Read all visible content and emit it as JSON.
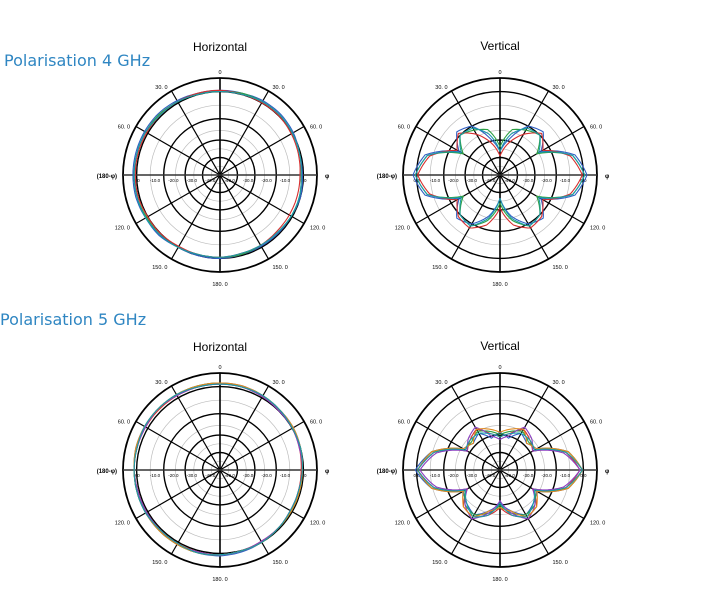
{
  "sections": [
    {
      "title": "Polarisation 4 GHz"
    },
    {
      "title": "Polarisation 5 GHz"
    }
  ],
  "angle_labels": {
    "top": "0",
    "r30": "30. 0",
    "r60": "60. 0",
    "r120": "120. 0",
    "r150": "150. 0",
    "bottom": "180. 0",
    "l150": "150. 0",
    "l120": "120. 0",
    "l60": "60. 0",
    "l30": "30. 0",
    "right": "φ",
    "left": "(180-φ)"
  },
  "radial_labels": [
    "0.0",
    "-10.0",
    "-20.0",
    "-30.0",
    "-40.0"
  ],
  "colors": {
    "blue": "#2f5fc4",
    "green": "#2ea043",
    "red": "#d62f2f",
    "teal": "#1a9aa8",
    "purple": "#8a3fc0",
    "orange": "#e08a20",
    "accent": "#2f86c2"
  },
  "chart_data": [
    {
      "type": "polar-line",
      "section": "Polarisation 4 GHz",
      "title": "Horizontal",
      "r_unit": "dB",
      "r_range": [
        -40,
        0
      ],
      "series": [
        {
          "color": "blue",
          "gain_db": [
            -4,
            -4,
            -3.5,
            -3.5,
            -4,
            -5,
            -5,
            -4.5,
            -5,
            -5,
            -5,
            -5,
            -4.5,
            -4.5,
            -4.5,
            -3.5,
            -3.5,
            -3,
            -3,
            -3,
            -3,
            -3,
            -3.5,
            -4
          ]
        },
        {
          "color": "green",
          "gain_db": [
            -4.5,
            -4,
            -4,
            -4,
            -4.5,
            -5,
            -5.5,
            -5,
            -5,
            -5.5,
            -5.5,
            -5,
            -5,
            -5,
            -4.5,
            -4,
            -4,
            -3.5,
            -3.5,
            -3.5,
            -3.5,
            -3.5,
            -4,
            -4.5
          ]
        },
        {
          "color": "red",
          "gain_db": [
            -4,
            -4.5,
            -4.5,
            -4.5,
            -5,
            -5.5,
            -6,
            -6,
            -6,
            -6,
            -5.5,
            -5.5,
            -5,
            -5,
            -5,
            -4.5,
            -4.5,
            -4,
            -4,
            -4,
            -4,
            -4,
            -4,
            -4
          ]
        },
        {
          "color": "teal",
          "gain_db": [
            -4.5,
            -4.5,
            -4,
            -4,
            -4.5,
            -5,
            -5.5,
            -5,
            -5,
            -5.5,
            -5.5,
            -5.5,
            -5,
            -5,
            -4.5,
            -4,
            -3.5,
            -3.5,
            -3.5,
            -3.5,
            -3.5,
            -4,
            -4,
            -4.5
          ]
        }
      ]
    },
    {
      "type": "polar-line",
      "section": "Polarisation 4 GHz",
      "title": "Vertical",
      "r_unit": "dB",
      "r_range": [
        -40,
        0
      ],
      "series": [
        {
          "color": "blue",
          "gain_db": [
            -30,
            -24,
            -16,
            -14,
            -20,
            -7,
            -3,
            -7,
            -20,
            -14,
            -16,
            -22,
            -30,
            -22,
            -16,
            -14,
            -20,
            -7,
            -3,
            -7,
            -20,
            -14,
            -16,
            -24
          ]
        },
        {
          "color": "green",
          "gain_db": [
            -28,
            -20,
            -18,
            -16,
            -22,
            -8,
            -4,
            -8,
            -22,
            -16,
            -15,
            -20,
            -28,
            -20,
            -15,
            -16,
            -22,
            -8,
            -4,
            -8,
            -22,
            -16,
            -18,
            -20
          ]
        },
        {
          "color": "red",
          "gain_db": [
            -32,
            -26,
            -20,
            -15,
            -19,
            -9,
            -5,
            -9,
            -19,
            -15,
            -14,
            -18,
            -26,
            -18,
            -14,
            -15,
            -19,
            -9,
            -5,
            -9,
            -19,
            -15,
            -20,
            -26
          ]
        },
        {
          "color": "teal",
          "gain_db": [
            -30,
            -22,
            -17,
            -16,
            -21,
            -8,
            -4,
            -8,
            -21,
            -16,
            -15,
            -21,
            -30,
            -21,
            -15,
            -16,
            -21,
            -8,
            -4,
            -8,
            -21,
            -16,
            -17,
            -22
          ]
        }
      ]
    },
    {
      "type": "polar-line",
      "section": "Polarisation 5 GHz",
      "title": "Horizontal",
      "r_unit": "dB",
      "r_range": [
        -40,
        0
      ],
      "series": [
        {
          "color": "blue",
          "gain_db": [
            -3,
            -3,
            -3.5,
            -4,
            -4,
            -4.5,
            -5,
            -5,
            -5,
            -5,
            -4.5,
            -4,
            -3.5,
            -3.5,
            -3.5,
            -3.5,
            -3.5,
            -3.5,
            -3.5,
            -3,
            -3,
            -3,
            -3,
            -3
          ]
        },
        {
          "color": "red",
          "gain_db": [
            -3.5,
            -3.5,
            -4,
            -4,
            -4.5,
            -5,
            -5.5,
            -5.5,
            -5.5,
            -5,
            -5,
            -4.5,
            -4,
            -4,
            -4,
            -4,
            -4,
            -4,
            -3.5,
            -3.5,
            -3.5,
            -3.5,
            -3.5,
            -3.5
          ]
        },
        {
          "color": "green",
          "gain_db": [
            -3,
            -3.5,
            -3.5,
            -4,
            -4.5,
            -4.5,
            -5,
            -5,
            -5,
            -5,
            -4.5,
            -4.5,
            -4,
            -3.5,
            -3.5,
            -3.5,
            -4,
            -3.5,
            -3.5,
            -3.5,
            -3,
            -3,
            -3,
            -3
          ]
        },
        {
          "color": "purple",
          "gain_db": [
            -3.5,
            -3.5,
            -4,
            -4.5,
            -4.5,
            -5,
            -5,
            -5.5,
            -5.5,
            -5,
            -5,
            -4.5,
            -4,
            -4,
            -3.5,
            -4,
            -4,
            -4,
            -3.5,
            -3.5,
            -3.5,
            -3,
            -3.5,
            -3.5
          ]
        },
        {
          "color": "orange",
          "gain_db": [
            -3,
            -3,
            -3.5,
            -4,
            -4,
            -4.5,
            -5,
            -5,
            -5,
            -5,
            -4.5,
            -4.5,
            -4,
            -3.5,
            -3.5,
            -3.5,
            -3.5,
            -3.5,
            -3.5,
            -3,
            -3,
            -3,
            -3,
            -3
          ]
        },
        {
          "color": "teal",
          "gain_db": [
            -3.5,
            -3.5,
            -3.5,
            -4,
            -4.5,
            -4.5,
            -5,
            -5.5,
            -5.5,
            -5,
            -4.5,
            -4.5,
            -4,
            -3.5,
            -4,
            -4,
            -3.5,
            -3.5,
            -3.5,
            -3.5,
            -3,
            -3,
            -3,
            -3.5
          ]
        }
      ]
    },
    {
      "type": "polar-line",
      "section": "Polarisation 5 GHz",
      "title": "Vertical",
      "r_unit": "dB",
      "r_range": [
        -40,
        0
      ],
      "series": [
        {
          "color": "blue",
          "gain_db": [
            -24,
            -26,
            -22,
            -24,
            -22,
            -10,
            -5,
            -10,
            -22,
            -20,
            -18,
            -22,
            -26,
            -22,
            -18,
            -20,
            -22,
            -10,
            -4,
            -10,
            -22,
            -24,
            -22,
            -26
          ]
        },
        {
          "color": "red",
          "gain_db": [
            -26,
            -24,
            -20,
            -22,
            -24,
            -11,
            -6,
            -11,
            -24,
            -18,
            -17,
            -20,
            -24,
            -20,
            -17,
            -18,
            -24,
            -11,
            -5,
            -11,
            -24,
            -22,
            -20,
            -24
          ]
        },
        {
          "color": "green",
          "gain_db": [
            -25,
            -23,
            -21,
            -23,
            -23,
            -10,
            -5,
            -10,
            -23,
            -19,
            -18,
            -21,
            -25,
            -21,
            -18,
            -19,
            -23,
            -10,
            -5,
            -10,
            -23,
            -23,
            -21,
            -23
          ]
        },
        {
          "color": "purple",
          "gain_db": [
            -27,
            -25,
            -19,
            -21,
            -24,
            -12,
            -6,
            -12,
            -24,
            -19,
            -16,
            -21,
            -27,
            -21,
            -16,
            -19,
            -24,
            -12,
            -6,
            -12,
            -24,
            -21,
            -19,
            -25
          ]
        },
        {
          "color": "orange",
          "gain_db": [
            -24,
            -22,
            -20,
            -24,
            -22,
            -10,
            -5,
            -10,
            -22,
            -18,
            -17,
            -22,
            -24,
            -22,
            -17,
            -18,
            -22,
            -10,
            -5,
            -10,
            -22,
            -24,
            -20,
            -22
          ]
        },
        {
          "color": "teal",
          "gain_db": [
            -26,
            -24,
            -22,
            -22,
            -23,
            -11,
            -5,
            -11,
            -23,
            -20,
            -17,
            -20,
            -26,
            -20,
            -17,
            -20,
            -23,
            -11,
            -5,
            -11,
            -23,
            -22,
            -22,
            -24
          ]
        }
      ]
    }
  ]
}
